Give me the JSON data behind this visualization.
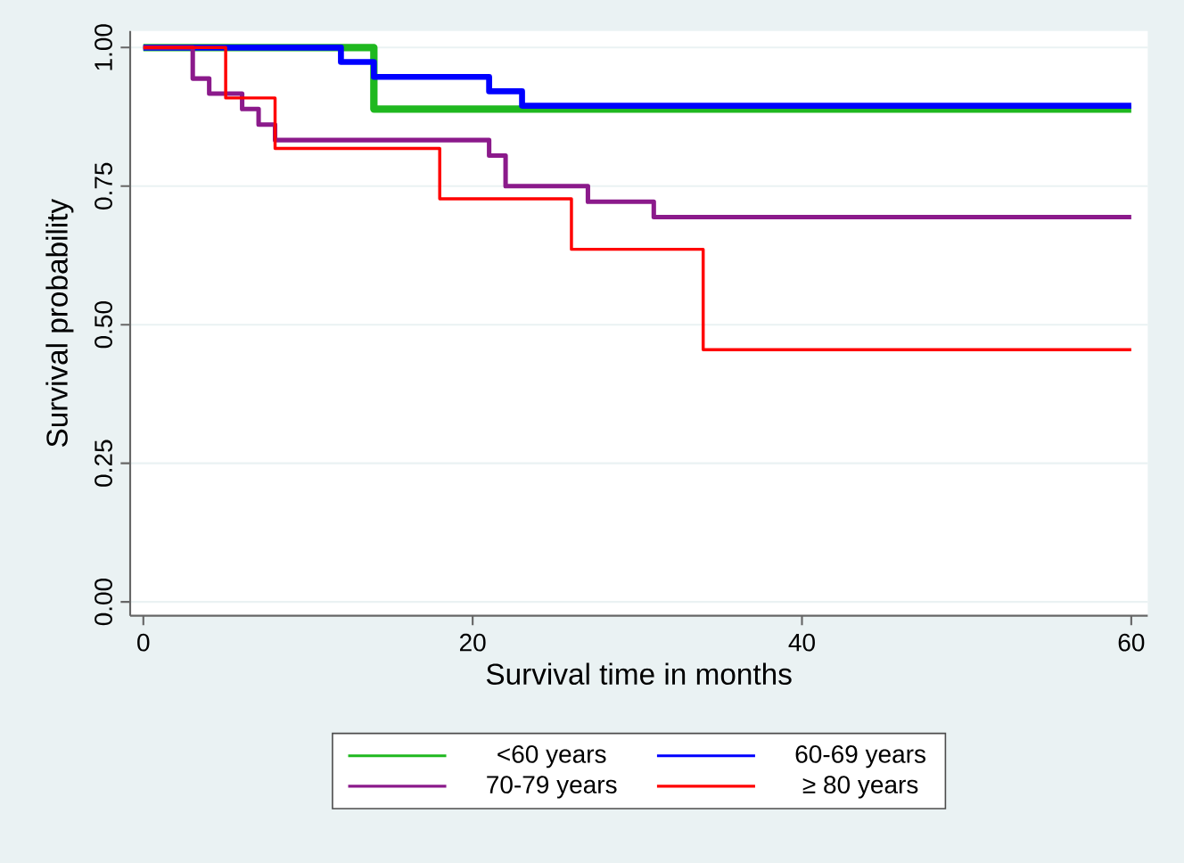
{
  "chart_data": {
    "type": "step",
    "xlabel": "Survival time in months",
    "ylabel": "Survival probability",
    "xlim": [
      -0.8,
      61
    ],
    "ylim": [
      -0.025,
      1.03
    ],
    "xticks": [
      0,
      20,
      40,
      60
    ],
    "yticks": [
      {
        "value": 0,
        "label": "0.00"
      },
      {
        "value": 0.25,
        "label": "0.25"
      },
      {
        "value": 0.5,
        "label": "0.50"
      },
      {
        "value": 0.75,
        "label": "0.75"
      },
      {
        "value": 1,
        "label": "1.00"
      }
    ],
    "grid": "y",
    "legend": "bottom",
    "series": [
      {
        "name": "<60 years",
        "color": "#1fb81f",
        "x": [
          0,
          14,
          60
        ],
        "values": [
          1,
          0.889,
          0.889
        ]
      },
      {
        "name": "60-69 years",
        "color": "#0000ff",
        "x": [
          0,
          12,
          14,
          21,
          23,
          60
        ],
        "values": [
          1,
          0.974,
          0.947,
          0.921,
          0.895,
          0.895
        ]
      },
      {
        "name": "70-79 years",
        "color": "#8b1a8b",
        "x": [
          0,
          3,
          4,
          6,
          7,
          8,
          21,
          22,
          27,
          31,
          60
        ],
        "values": [
          1,
          0.944,
          0.917,
          0.889,
          0.861,
          0.833,
          0.805,
          0.75,
          0.722,
          0.694,
          0.694
        ]
      },
      {
        "name": "≥ 80 years",
        "color": "#ff0000",
        "x": [
          0,
          5,
          8,
          18,
          26,
          34,
          60
        ],
        "values": [
          1,
          0.909,
          0.818,
          0.727,
          0.636,
          0.455,
          0.455
        ]
      }
    ]
  }
}
